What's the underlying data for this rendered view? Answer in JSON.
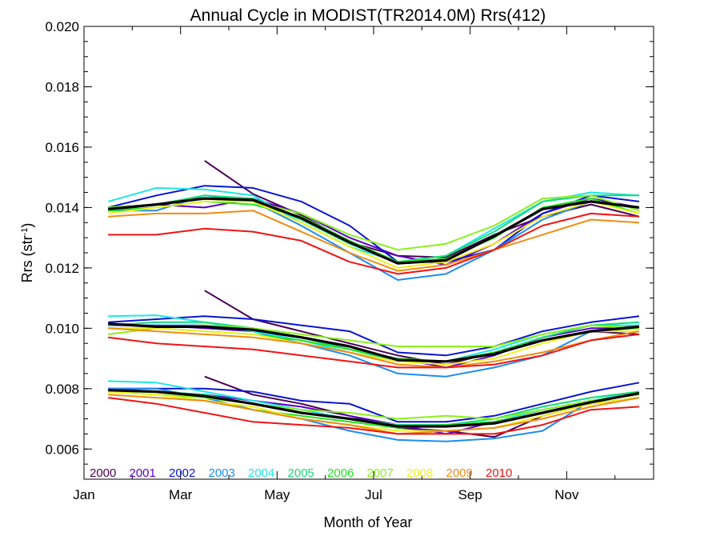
{
  "chart_data": {
    "type": "line",
    "title": "Annual Cycle in MODIST(TR2014.0M) Rrs(412)",
    "xlabel": "Month of Year",
    "ylabel_main": "Rrs (str",
    "ylabel_sup": "-1",
    "ylabel_close": ")",
    "xlim": [
      1,
      12.8
    ],
    "ylim": [
      0.005,
      0.02
    ],
    "x_ticks": [
      {
        "value": 1,
        "label": "Jan"
      },
      {
        "value": 3,
        "label": "Mar"
      },
      {
        "value": 5,
        "label": "May"
      },
      {
        "value": 7,
        "label": "Jul"
      },
      {
        "value": 9,
        "label": "Sep"
      },
      {
        "value": 11,
        "label": "Nov"
      }
    ],
    "y_ticks": [
      {
        "value": 0.006,
        "label": "0.006"
      },
      {
        "value": 0.008,
        "label": "0.008"
      },
      {
        "value": 0.01,
        "label": "0.010"
      },
      {
        "value": 0.012,
        "label": "0.012"
      },
      {
        "value": 0.014,
        "label": "0.014"
      },
      {
        "value": 0.016,
        "label": "0.016"
      },
      {
        "value": 0.018,
        "label": "0.018"
      },
      {
        "value": 0.02,
        "label": "0.020"
      }
    ],
    "grid": false,
    "legend_placement": "bottom-left",
    "x": [
      1.5,
      2.5,
      3.5,
      4.5,
      5.5,
      6.5,
      7.5,
      8.5,
      9.5,
      10.5,
      11.5,
      12.5
    ],
    "mean_color": "#000000",
    "series": [
      {
        "name": "2000",
        "color": "#4b0055",
        "upper": [
          null,
          null,
          0.01555,
          0.01445,
          0.01375,
          0.01285,
          0.0124,
          0.01235,
          0.0131,
          0.0137,
          0.0141,
          0.0137
        ],
        "middle": [
          null,
          null,
          0.01125,
          0.0103,
          0.0099,
          0.0095,
          0.0091,
          0.0088,
          0.0092,
          0.0096,
          0.0099,
          0.0098
        ],
        "lower": [
          null,
          null,
          0.0084,
          0.0078,
          0.0075,
          0.0071,
          0.0067,
          0.0066,
          0.0064,
          0.0071,
          0.0075,
          0.0077
        ]
      },
      {
        "name": "2001",
        "color": "#5a00c8",
        "upper": [
          0.0139,
          0.0141,
          0.014,
          0.0143,
          0.0138,
          0.013,
          0.0124,
          0.0121,
          0.0128,
          0.0138,
          0.0143,
          0.014
        ],
        "middle": [
          0.0101,
          0.0101,
          0.01,
          0.0099,
          0.0097,
          0.0093,
          0.009,
          0.0087,
          0.0091,
          0.0097,
          0.01,
          0.01
        ],
        "lower": [
          0.008,
          0.0079,
          0.0078,
          0.0076,
          0.0074,
          0.0071,
          0.0068,
          0.0065,
          0.0069,
          0.0073,
          0.0076,
          0.0078
        ]
      },
      {
        "name": "2002",
        "color": "#0a14d2",
        "upper": [
          0.014,
          0.0144,
          0.01472,
          0.01465,
          0.0142,
          0.0134,
          0.0122,
          0.0122,
          0.0126,
          0.0138,
          0.0144,
          0.0142
        ],
        "middle": [
          0.0102,
          0.0103,
          0.0104,
          0.0103,
          0.0101,
          0.0099,
          0.0092,
          0.0091,
          0.0094,
          0.0099,
          0.0102,
          0.0104
        ],
        "lower": [
          0.008,
          0.008,
          0.008,
          0.0079,
          0.0076,
          0.0075,
          0.0069,
          0.0069,
          0.0071,
          0.0075,
          0.0079,
          0.0082
        ]
      },
      {
        "name": "2003",
        "color": "#1e8cf0",
        "upper": [
          0.0139,
          0.0139,
          0.0144,
          0.0142,
          0.0134,
          0.0125,
          0.0116,
          0.0118,
          0.0126,
          0.0136,
          0.0142,
          0.014
        ],
        "middle": [
          0.0101,
          0.0101,
          0.0101,
          0.0099,
          0.0095,
          0.0091,
          0.0085,
          0.0084,
          0.0087,
          0.0091,
          0.0099,
          0.0101
        ],
        "lower": [
          0.008,
          0.008,
          0.0077,
          0.0073,
          0.007,
          0.0066,
          0.0063,
          0.00625,
          0.00635,
          0.0066,
          0.0076,
          0.0079
        ]
      },
      {
        "name": "2004",
        "color": "#1ee6e6",
        "upper": [
          0.0142,
          0.01465,
          0.0146,
          0.0144,
          0.0135,
          0.0127,
          0.0122,
          0.0124,
          0.0133,
          0.0142,
          0.0145,
          0.0144
        ],
        "middle": [
          0.0104,
          0.01043,
          0.0102,
          0.0099,
          0.0096,
          0.0092,
          0.0089,
          0.0089,
          0.0093,
          0.0098,
          0.0101,
          0.0101
        ],
        "lower": [
          0.00825,
          0.0082,
          0.0079,
          0.0076,
          0.0073,
          0.007,
          0.0068,
          0.0068,
          0.0069,
          0.0073,
          0.0076,
          0.0079
        ]
      },
      {
        "name": "2005",
        "color": "#14dc78",
        "upper": [
          0.014,
          0.0141,
          0.0144,
          0.0143,
          0.0136,
          0.0128,
          0.0122,
          0.0124,
          0.0132,
          0.0142,
          0.0144,
          0.0144
        ],
        "middle": [
          0.0101,
          0.0102,
          0.0102,
          0.01,
          0.0097,
          0.0093,
          0.0089,
          0.0089,
          0.0092,
          0.0097,
          0.0101,
          0.0102
        ],
        "lower": [
          0.0079,
          0.0079,
          0.0078,
          0.0075,
          0.0072,
          0.007,
          0.0068,
          0.0068,
          0.007,
          0.0074,
          0.0077,
          0.0079
        ]
      },
      {
        "name": "2006",
        "color": "#1ee61e",
        "upper": [
          0.0139,
          0.014,
          0.0142,
          0.0141,
          0.0137,
          0.0129,
          0.0122,
          0.0123,
          0.013,
          0.014,
          0.0143,
          0.0138
        ],
        "middle": [
          0.01,
          0.01,
          0.0099,
          0.0098,
          0.0096,
          0.0093,
          0.009,
          0.0089,
          0.0092,
          0.0096,
          0.0099,
          0.01
        ],
        "lower": [
          0.0079,
          0.0078,
          0.0076,
          0.0073,
          0.0071,
          0.0069,
          0.0067,
          0.0068,
          0.0069,
          0.0072,
          0.0075,
          0.0077
        ]
      },
      {
        "name": "2007",
        "color": "#8cf01e",
        "upper": [
          0.014,
          0.0141,
          0.0143,
          0.0142,
          0.0138,
          0.0131,
          0.0126,
          0.0128,
          0.0134,
          0.0143,
          0.0144,
          0.0139
        ],
        "middle": [
          0.0098,
          0.01,
          0.0101,
          0.01,
          0.0098,
          0.0096,
          0.0094,
          0.0094,
          0.0094,
          0.0098,
          0.0101,
          0.01
        ],
        "lower": [
          0.0079,
          0.0078,
          0.0077,
          0.0075,
          0.0073,
          0.0072,
          0.007,
          0.0071,
          0.007,
          0.0073,
          0.0076,
          0.0078
        ]
      },
      {
        "name": "2008",
        "color": "#f0f01e",
        "upper": [
          0.0138,
          0.014,
          0.0142,
          0.0142,
          0.0135,
          0.0127,
          0.012,
          0.0122,
          0.0128,
          0.0137,
          0.0142,
          0.0138
        ],
        "middle": [
          0.01,
          0.01,
          0.0099,
          0.0098,
          0.0095,
          0.0092,
          0.0089,
          0.0088,
          0.009,
          0.0095,
          0.0099,
          0.0099
        ],
        "lower": [
          0.0079,
          0.0078,
          0.0076,
          0.0074,
          0.007,
          0.0068,
          0.0066,
          0.0066,
          0.0067,
          0.0071,
          0.0075,
          0.0077
        ]
      },
      {
        "name": "2009",
        "color": "#f08c14",
        "upper": [
          0.0137,
          0.0138,
          0.0138,
          0.0139,
          0.0132,
          0.0125,
          0.0119,
          0.0121,
          0.0126,
          0.0131,
          0.0136,
          0.0135
        ],
        "middle": [
          0.01,
          0.0099,
          0.0098,
          0.0097,
          0.0095,
          0.0092,
          0.0088,
          0.0087,
          0.0089,
          0.0092,
          0.0096,
          0.0099
        ],
        "lower": [
          0.0078,
          0.0077,
          0.0076,
          0.0073,
          0.007,
          0.0068,
          0.0065,
          0.0066,
          0.0067,
          0.007,
          0.0074,
          0.0077
        ]
      },
      {
        "name": "2010",
        "color": "#f01414",
        "upper": [
          0.0131,
          0.0131,
          0.0133,
          0.0132,
          0.0129,
          0.0122,
          0.0118,
          0.012,
          0.0126,
          0.0134,
          0.0138,
          0.0137
        ],
        "middle": [
          0.0097,
          0.0095,
          0.0094,
          0.0093,
          0.0091,
          0.0089,
          0.0087,
          0.0087,
          0.0088,
          0.0091,
          0.0096,
          0.0098
        ],
        "lower": [
          0.0077,
          0.0075,
          0.0072,
          0.0069,
          0.0068,
          0.0067,
          0.0065,
          0.0065,
          0.0065,
          0.0068,
          0.0073,
          0.0074
        ]
      }
    ],
    "mean": {
      "upper": [
        0.01395,
        0.0141,
        0.0143,
        0.01425,
        0.01365,
        0.01285,
        0.01215,
        0.01225,
        0.01305,
        0.01395,
        0.0142,
        0.014
      ],
      "middle": [
        0.01015,
        0.01005,
        0.01005,
        0.00995,
        0.0097,
        0.0094,
        0.00895,
        0.0089,
        0.00915,
        0.0096,
        0.0099,
        0.01005
      ],
      "lower": [
        0.00795,
        0.0079,
        0.00775,
        0.0075,
        0.0072,
        0.007,
        0.00675,
        0.00675,
        0.00685,
        0.0072,
        0.00755,
        0.00785
      ]
    }
  }
}
